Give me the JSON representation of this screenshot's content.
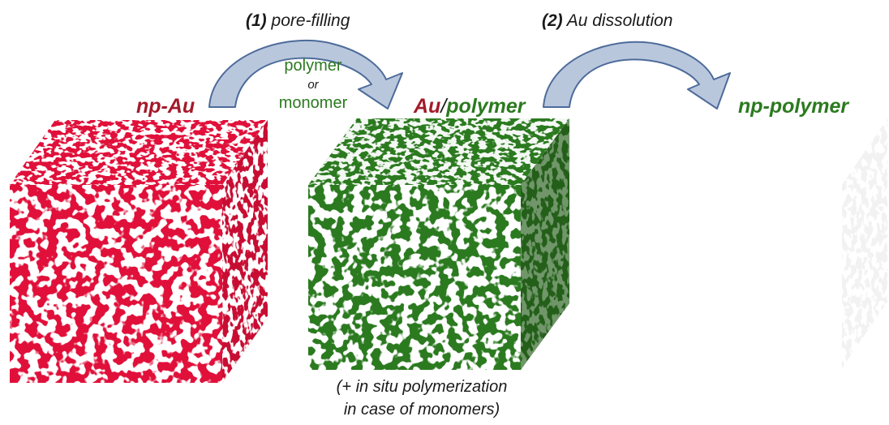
{
  "colors": {
    "gold": "#e0103a",
    "polymer": "#2b7a1f",
    "pore": "#ffffff",
    "arrow_fill": "#b9c7dd",
    "arrow_edge": "#4d6b9a"
  },
  "steps": {
    "step1_number": "(1)",
    "step1_text": "pore-filling",
    "step2_number": "(2)",
    "step2_text": "Au dissolution"
  },
  "fill_options": {
    "line1": "polymer",
    "line2": "or",
    "line3": "monomer"
  },
  "cubes": {
    "cube1_title": "np-Au",
    "cube2_title_au": "Au",
    "cube2_title_slash": "/",
    "cube2_title_polymer": "polymer",
    "cube3_title": "np-polymer"
  },
  "note": {
    "line1": "(+ in situ polymerization",
    "line2": "in case of monomers)"
  }
}
